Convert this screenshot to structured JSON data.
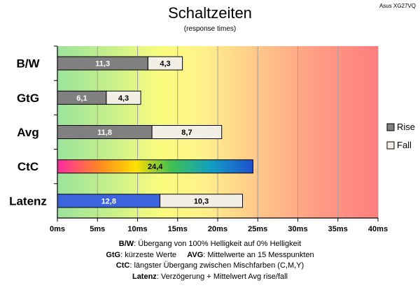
{
  "header": {
    "title": "Schaltzeiten",
    "subtitle": "(response times)",
    "corner_label": "Asus XG27VQ"
  },
  "chart_data": {
    "type": "bar",
    "stacked": true,
    "orientation": "horizontal",
    "categories": [
      "B/W",
      "GtG",
      "Avg",
      "CtC",
      "Latenz"
    ],
    "series": [
      {
        "name": "Rise",
        "values": [
          11.3,
          6.1,
          11.8,
          24.4,
          12.8
        ],
        "color": "#808080"
      },
      {
        "name": "Fall",
        "values": [
          4.3,
          4.3,
          8.7,
          0,
          10.3
        ],
        "color": "#f2f0e6"
      }
    ],
    "value_labels": [
      [
        "11,3",
        "4,3"
      ],
      [
        "6,1",
        "4,3"
      ],
      [
        "11,8",
        "8,7"
      ],
      [
        "24,4",
        ""
      ],
      [
        "12,8",
        "10,3"
      ]
    ],
    "special_bars": {
      "CtC": "rainbow",
      "Latenz": "blue"
    },
    "xlim": [
      0,
      40
    ],
    "xticks": [
      "0ms",
      "5ms",
      "10ms",
      "15ms",
      "20ms",
      "25ms",
      "30ms",
      "35ms",
      "40ms"
    ],
    "grid": true,
    "background": "gradient green-yellow-red",
    "legend": "right"
  },
  "notes": [
    {
      "label": "B/W",
      "text": ":  Übergang von 100% Helligkeit auf 0% Helligkeit"
    },
    {
      "label": "GtG",
      "text": ": kürzeste  Werte",
      "label2": "AVG",
      "text2": ": Mittelwerte  an 15 Messpunkten"
    },
    {
      "label": "CtC",
      "text": ": längster Übergang  zwischen Mischfarben (C,M,Y)"
    },
    {
      "label": "Latenz",
      "text": ": Verzögerung  + Mittelwert Avg rise/fall"
    }
  ]
}
